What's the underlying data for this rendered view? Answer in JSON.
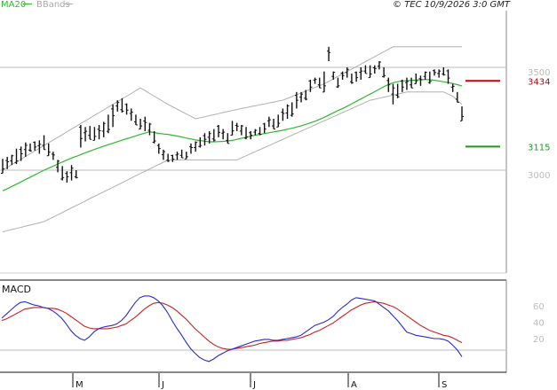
{
  "header": {
    "ma_label": "MA20",
    "bb_label": "BBands",
    "copyright": "© TEC 10/9/2026 3:0 GMT"
  },
  "colors": {
    "ma": "#2eb82e",
    "bbands": "#b0b0b0",
    "price": "#111111",
    "macd": "#2a2acc",
    "signal": "#cc2020",
    "resistance": "#cc0000",
    "support": "#1a9a1a",
    "grid": "#bbbbbb"
  },
  "chart_data": [
    {
      "type": "bar",
      "style": "ohlc",
      "x_axis": {
        "labels": [
          "M",
          "J",
          "J",
          "A",
          "S"
        ]
      },
      "y_axis": {
        "ticks": [
          "3500",
          "3000"
        ],
        "tick_values": [
          3500,
          3000
        ],
        "range": [
          2550,
          3750
        ]
      },
      "grid": "horizontal",
      "price_bars": [
        [
          2985,
          3055
        ],
        [
          3005,
          3065
        ],
        [
          3025,
          3075
        ],
        [
          3030,
          3105
        ],
        [
          3045,
          3115
        ],
        [
          3065,
          3135
        ],
        [
          3090,
          3130
        ],
        [
          3095,
          3140
        ],
        [
          3080,
          3145
        ],
        [
          3100,
          3170
        ],
        [
          3070,
          3130
        ],
        [
          3050,
          3090
        ],
        [
          2990,
          3050
        ],
        [
          2950,
          3020
        ],
        [
          2940,
          2995
        ],
        [
          2950,
          3025
        ],
        [
          2960,
          3000
        ],
        [
          3110,
          3220
        ],
        [
          3140,
          3210
        ],
        [
          3150,
          3215
        ],
        [
          3145,
          3210
        ],
        [
          3150,
          3220
        ],
        [
          3160,
          3235
        ],
        [
          3180,
          3270
        ],
        [
          3210,
          3320
        ],
        [
          3285,
          3340
        ],
        [
          3280,
          3350
        ],
        [
          3270,
          3325
        ],
        [
          3240,
          3300
        ],
        [
          3220,
          3270
        ],
        [
          3200,
          3250
        ],
        [
          3190,
          3260
        ],
        [
          3170,
          3230
        ],
        [
          3130,
          3190
        ],
        [
          3080,
          3130
        ],
        [
          3050,
          3100
        ],
        [
          3040,
          3080
        ],
        [
          3040,
          3075
        ],
        [
          3050,
          3090
        ],
        [
          3060,
          3100
        ],
        [
          3055,
          3090
        ],
        [
          3080,
          3130
        ],
        [
          3090,
          3140
        ],
        [
          3110,
          3160
        ],
        [
          3120,
          3180
        ],
        [
          3130,
          3190
        ],
        [
          3140,
          3200
        ],
        [
          3160,
          3220
        ],
        [
          3150,
          3200
        ],
        [
          3130,
          3180
        ],
        [
          3170,
          3240
        ],
        [
          3190,
          3230
        ],
        [
          3170,
          3220
        ],
        [
          3150,
          3210
        ],
        [
          3150,
          3190
        ],
        [
          3170,
          3200
        ],
        [
          3170,
          3210
        ],
        [
          3180,
          3230
        ],
        [
          3210,
          3260
        ],
        [
          3200,
          3250
        ],
        [
          3210,
          3270
        ],
        [
          3240,
          3300
        ],
        [
          3250,
          3320
        ],
        [
          3260,
          3330
        ],
        [
          3300,
          3380
        ],
        [
          3330,
          3380
        ],
        [
          3340,
          3390
        ],
        [
          3380,
          3440
        ],
        [
          3420,
          3450
        ],
        [
          3400,
          3450
        ],
        [
          3380,
          3480
        ],
        [
          3530,
          3600
        ],
        [
          3440,
          3480
        ],
        [
          3400,
          3450
        ],
        [
          3440,
          3480
        ],
        [
          3450,
          3500
        ],
        [
          3420,
          3470
        ],
        [
          3430,
          3480
        ],
        [
          3440,
          3500
        ],
        [
          3470,
          3510
        ],
        [
          3450,
          3510
        ],
        [
          3470,
          3510
        ],
        [
          3490,
          3530
        ],
        [
          3450,
          3500
        ],
        [
          3380,
          3450
        ],
        [
          3320,
          3420
        ],
        [
          3350,
          3420
        ],
        [
          3380,
          3440
        ],
        [
          3390,
          3450
        ],
        [
          3400,
          3450
        ],
        [
          3420,
          3470
        ],
        [
          3410,
          3460
        ],
        [
          3440,
          3480
        ],
        [
          3420,
          3480
        ],
        [
          3460,
          3490
        ],
        [
          3450,
          3490
        ],
        [
          3460,
          3500
        ],
        [
          3420,
          3490
        ],
        [
          3380,
          3420
        ],
        [
          3330,
          3380
        ],
        [
          3240,
          3310
        ]
      ],
      "ma20": [
        2900,
        2910,
        2921,
        2932,
        2943,
        2955,
        2966,
        2977,
        2989,
        3000,
        3010,
        3020,
        3030,
        3040,
        3050,
        3059,
        3067,
        3076,
        3085,
        3093,
        3101,
        3109,
        3117,
        3124,
        3131,
        3139,
        3146,
        3153,
        3160,
        3167,
        3174,
        3180,
        3187,
        3183,
        3179,
        3176,
        3174,
        3170,
        3166,
        3161,
        3156,
        3152,
        3147,
        3144,
        3141,
        3138,
        3138,
        3139,
        3140,
        3142,
        3145,
        3150,
        3155,
        3160,
        3165,
        3170,
        3174,
        3178,
        3182,
        3186,
        3190,
        3194,
        3199,
        3204,
        3210,
        3216,
        3223,
        3230,
        3238,
        3247,
        3257,
        3268,
        3279,
        3290,
        3300,
        3311,
        3323,
        3335,
        3346,
        3358,
        3370,
        3382,
        3394,
        3406,
        3417,
        3425,
        3430,
        3434,
        3435,
        3437,
        3438,
        3440,
        3441,
        3440,
        3437,
        3434,
        3430,
        3426,
        3421,
        3416,
        3410
      ],
      "bb_upper": [
        3000,
        3013,
        3027,
        3040,
        3053,
        3067,
        3080,
        3093,
        3107,
        3120,
        3133,
        3147,
        3160,
        3173,
        3187,
        3200,
        3213,
        3227,
        3240,
        3253,
        3267,
        3280,
        3293,
        3307,
        3320,
        3333,
        3347,
        3360,
        3373,
        3387,
        3400,
        3387,
        3373,
        3360,
        3347,
        3333,
        3320,
        3308,
        3297,
        3285,
        3273,
        3262,
        3250,
        3255,
        3260,
        3265,
        3270,
        3275,
        3280,
        3285,
        3290,
        3295,
        3300,
        3304,
        3309,
        3313,
        3318,
        3322,
        3327,
        3331,
        3336,
        3340,
        3349,
        3358,
        3367,
        3376,
        3384,
        3393,
        3402,
        3411,
        3420,
        3432,
        3444,
        3456,
        3468,
        3480,
        3492,
        3504,
        3516,
        3528,
        3540,
        3552,
        3564,
        3576,
        3588,
        3600,
        3600,
        3600,
        3600,
        3600,
        3600,
        3600,
        3600,
        3600,
        3600,
        3600,
        3600,
        3600,
        3600,
        3600,
        3600
      ],
      "bb_lower": [
        2700,
        2706,
        2711,
        2717,
        2722,
        2728,
        2733,
        2739,
        2744,
        2750,
        2761,
        2772,
        2783,
        2794,
        2806,
        2817,
        2828,
        2839,
        2850,
        2862,
        2873,
        2884,
        2895,
        2906,
        2917,
        2928,
        2939,
        2950,
        2962,
        2973,
        2984,
        2995,
        3006,
        3017,
        3028,
        3039,
        3050,
        3050,
        3050,
        3050,
        3050,
        3050,
        3050,
        3050,
        3050,
        3050,
        3050,
        3050,
        3050,
        3050,
        3050,
        3050,
        3060,
        3070,
        3080,
        3090,
        3100,
        3110,
        3120,
        3130,
        3140,
        3150,
        3160,
        3170,
        3180,
        3190,
        3200,
        3210,
        3220,
        3230,
        3240,
        3250,
        3260,
        3270,
        3280,
        3290,
        3300,
        3310,
        3320,
        3330,
        3340,
        3345,
        3350,
        3355,
        3360,
        3365,
        3370,
        3375,
        3380,
        3380,
        3380,
        3380,
        3380,
        3380,
        3380,
        3380,
        3380,
        3370,
        3360,
        3340,
        3320
      ],
      "levels": [
        {
          "label": "3434",
          "value": 3434,
          "kind": "resistance"
        },
        {
          "label": "3115",
          "value": 3115,
          "kind": "support"
        }
      ]
    },
    {
      "type": "line",
      "title": "MACD",
      "y_axis": {
        "ticks": [
          "60",
          "40",
          "20"
        ],
        "tick_values": [
          60,
          40,
          20
        ],
        "range": [
          -15,
          80
        ]
      },
      "grid": "horizontal",
      "macd": [
        45,
        50,
        55,
        60,
        64,
        65,
        63,
        61,
        60,
        58,
        57,
        54,
        50,
        45,
        38,
        30,
        24,
        20,
        18,
        22,
        28,
        32,
        34,
        35,
        36,
        38,
        42,
        48,
        56,
        64,
        70,
        72,
        72,
        70,
        66,
        60,
        52,
        42,
        33,
        25,
        16,
        8,
        2,
        -3,
        -6,
        -8,
        -5,
        -1,
        2,
        5,
        7,
        9,
        11,
        13,
        15,
        17,
        18,
        19,
        19,
        18,
        18,
        19,
        20,
        21,
        22,
        24,
        28,
        32,
        36,
        38,
        40,
        43,
        47,
        53,
        58,
        62,
        67,
        70,
        69,
        68,
        67,
        66,
        62,
        58,
        54,
        48,
        42,
        35,
        28,
        26,
        24,
        23,
        22,
        21,
        20,
        20,
        19,
        17,
        12,
        6,
        -2
      ],
      "signal": [
        42,
        44,
        47,
        50,
        53,
        56,
        57,
        58,
        58,
        58,
        57,
        57,
        56,
        54,
        51,
        47,
        43,
        39,
        35,
        33,
        32,
        32,
        32,
        32,
        33,
        34,
        36,
        38,
        42,
        46,
        51,
        56,
        60,
        63,
        64,
        63,
        61,
        58,
        54,
        49,
        44,
        38,
        32,
        27,
        22,
        17,
        13,
        10,
        8,
        7,
        7,
        8,
        9,
        10,
        11,
        12,
        14,
        15,
        16,
        17,
        17,
        18,
        18,
        19,
        20,
        21,
        23,
        25,
        28,
        30,
        33,
        36,
        39,
        43,
        47,
        51,
        55,
        58,
        61,
        63,
        64,
        65,
        64,
        63,
        61,
        59,
        56,
        52,
        48,
        44,
        40,
        36,
        33,
        30,
        28,
        26,
        24,
        23,
        21,
        18,
        15
      ]
    }
  ]
}
